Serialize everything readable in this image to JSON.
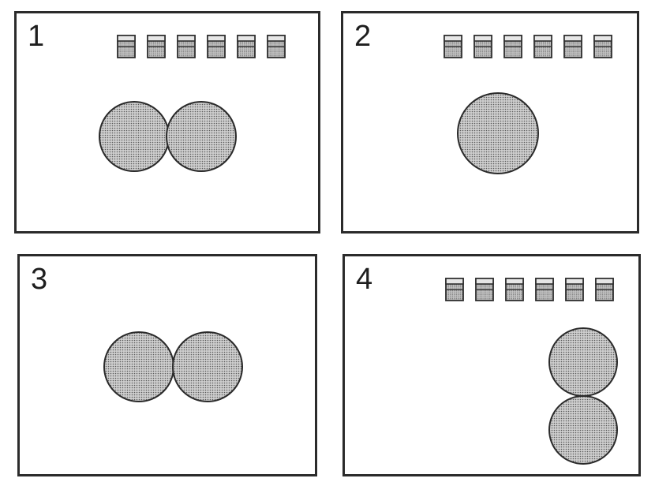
{
  "panels": [
    {
      "number": "1",
      "cup_count": 6,
      "circle_count": 2,
      "arrangement": "horizontal-touching"
    },
    {
      "number": "2",
      "cup_count": 6,
      "circle_count": 1,
      "arrangement": "single"
    },
    {
      "number": "3",
      "cup_count": 0,
      "circle_count": 2,
      "arrangement": "horizontal-touching"
    },
    {
      "number": "4",
      "cup_count": 6,
      "circle_count": 2,
      "arrangement": "vertical-touching"
    }
  ],
  "colors": {
    "border": "#2b2b2b",
    "fill": "#c9c9c9",
    "dot": "#555555",
    "cup_fill": "#bdbdbd"
  },
  "icons": {
    "cup": "container-icon",
    "circle": "dotted-circle-icon"
  }
}
